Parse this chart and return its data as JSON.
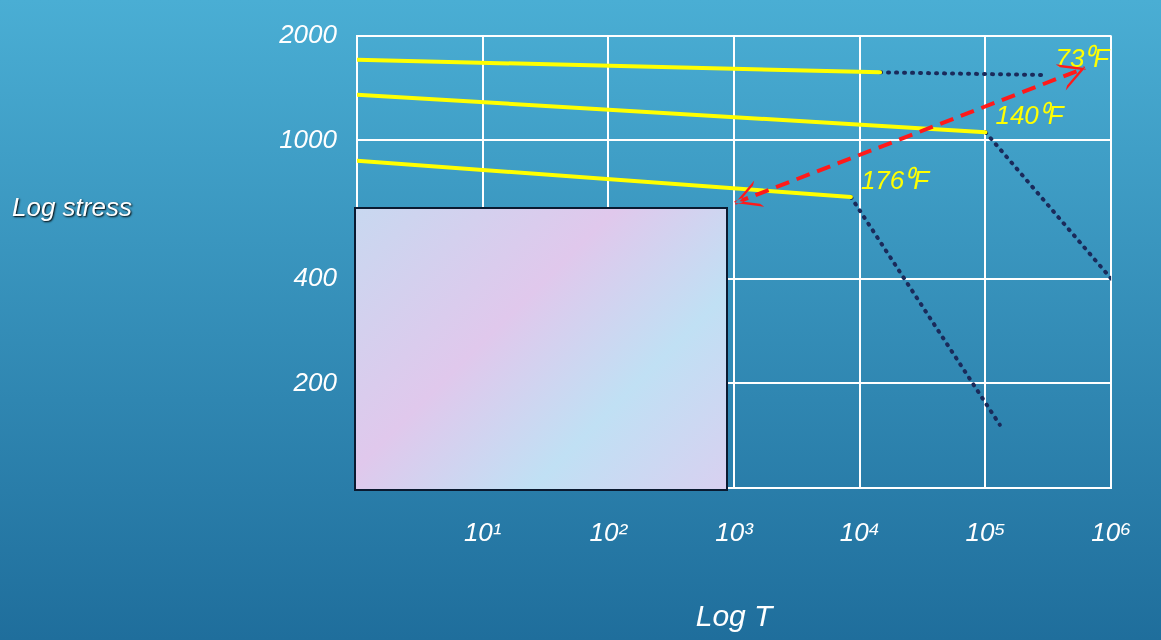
{
  "chart_data": {
    "type": "line",
    "xlabel": "Log T",
    "log": "xy",
    "grid": true,
    "legend": false,
    "marker": "none",
    "xlim": [
      1,
      1000000
    ],
    "ylim": [
      100,
      2000
    ],
    "xticks": [
      {
        "value": 10,
        "label": "10¹"
      },
      {
        "value": 100,
        "label": "10²"
      },
      {
        "value": 1000,
        "label": "10³"
      },
      {
        "value": 10000,
        "label": "10⁴"
      },
      {
        "value": 100000,
        "label": "10⁵"
      },
      {
        "value": 1000000,
        "label": "10⁶"
      }
    ],
    "yticks": [
      200,
      400,
      1000,
      2000
    ],
    "series": [
      {
        "color": "#ffff00",
        "line_style": "solid",
        "x": [
          1,
          14500
        ],
        "values": [
          1705,
          1568
        ]
      },
      {
        "name": "73⁰F",
        "color": "#1a2a5a",
        "line_style": "dotted",
        "x": [
          14500,
          300000
        ],
        "values": [
          1568,
          1541
        ]
      },
      {
        "name": "140⁰F",
        "color": "#ffff00",
        "line_style": "solid",
        "x": [
          1,
          100000
        ],
        "values": [
          1352,
          1055
        ]
      },
      {
        "color": "#1a2a5a",
        "line_style": "dotted",
        "x": [
          100000,
          1000000
        ],
        "values": [
          1055,
          400
        ]
      },
      {
        "name": "176⁰F",
        "color": "#ffff00",
        "line_style": "solid",
        "x": [
          1,
          8500
        ],
        "values": [
          873,
          687
        ]
      },
      {
        "color": "#1a2a5a",
        "line_style": "dotted",
        "x": [
          8500,
          130000
        ],
        "values": [
          687,
          152
        ]
      }
    ],
    "annotations": [
      "Log stress"
    ]
  }
}
